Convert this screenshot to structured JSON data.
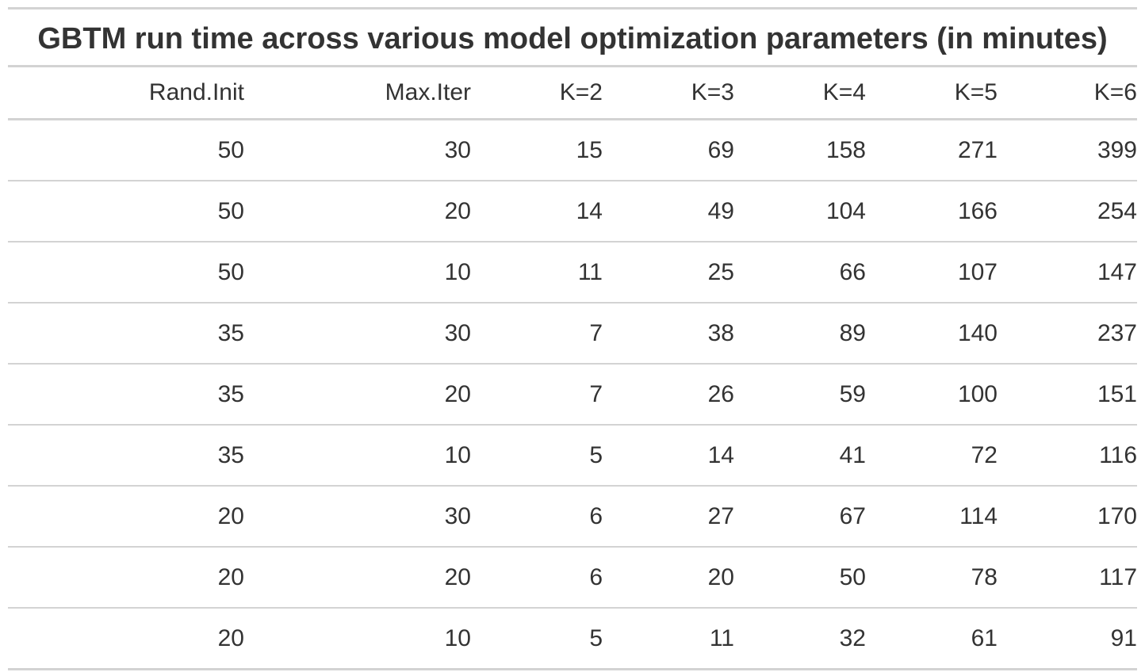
{
  "chart_data": {
    "type": "table",
    "title": "GBTM run time across various model optimization parameters (in minutes)",
    "columns": [
      "Rand.Init",
      "Max.Iter",
      "K=2",
      "K=3",
      "K=4",
      "K=5",
      "K=6"
    ],
    "rows": [
      [
        "50",
        "30",
        "15",
        "69",
        "158",
        "271",
        "399"
      ],
      [
        "50",
        "20",
        "14",
        "49",
        "104",
        "166",
        "254"
      ],
      [
        "50",
        "10",
        "11",
        "25",
        "66",
        "107",
        "147"
      ],
      [
        "35",
        "30",
        "7",
        "38",
        "89",
        "140",
        "237"
      ],
      [
        "35",
        "20",
        "7",
        "26",
        "59",
        "100",
        "151"
      ],
      [
        "35",
        "10",
        "5",
        "14",
        "41",
        "72",
        "116"
      ],
      [
        "20",
        "30",
        "6",
        "27",
        "67",
        "114",
        "170"
      ],
      [
        "20",
        "20",
        "6",
        "20",
        "50",
        "78",
        "117"
      ],
      [
        "20",
        "10",
        "5",
        "11",
        "32",
        "61",
        "91"
      ]
    ]
  }
}
